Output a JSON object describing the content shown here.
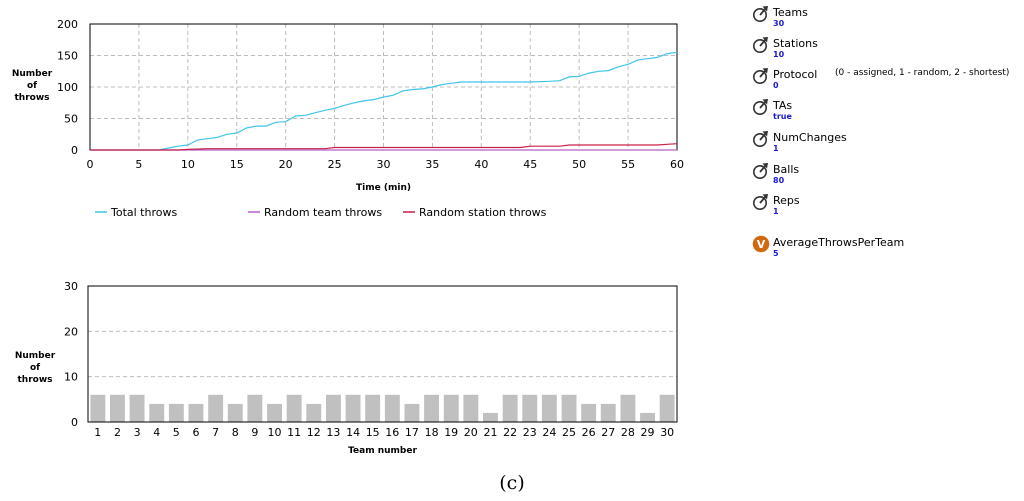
{
  "chart_data": [
    {
      "type": "line",
      "title": "",
      "xlabel": "Time (min)",
      "ylabel": [
        "Number",
        "of",
        "throws"
      ],
      "xlim": [
        0,
        60
      ],
      "ylim": [
        0,
        200
      ],
      "xticks": [
        0,
        5,
        10,
        15,
        20,
        25,
        30,
        35,
        40,
        45,
        50,
        55,
        60
      ],
      "yticks": [
        0,
        50,
        100,
        150,
        200
      ],
      "grid": true,
      "legend_position": "bottom",
      "series": [
        {
          "name": "Total throws",
          "color": "#40c4ea",
          "points": [
            [
              0,
              0
            ],
            [
              7,
              0
            ],
            [
              8,
              3
            ],
            [
              9,
              6
            ],
            [
              10,
              8
            ],
            [
              11,
              16
            ],
            [
              12,
              18
            ],
            [
              13,
              20
            ],
            [
              14,
              25
            ],
            [
              15,
              27
            ],
            [
              16,
              35
            ],
            [
              17,
              38
            ],
            [
              18,
              38
            ],
            [
              19,
              44
            ],
            [
              20,
              45
            ],
            [
              21,
              54
            ],
            [
              22,
              55
            ],
            [
              23,
              59
            ],
            [
              24,
              63
            ],
            [
              25,
              66
            ],
            [
              26,
              71
            ],
            [
              27,
              75
            ],
            [
              28,
              78
            ],
            [
              29,
              80
            ],
            [
              30,
              84
            ],
            [
              31,
              87
            ],
            [
              32,
              94
            ],
            [
              33,
              96
            ],
            [
              34,
              97
            ],
            [
              35,
              100
            ],
            [
              36,
              104
            ],
            [
              37,
              106
            ],
            [
              38,
              108
            ],
            [
              40,
              108
            ],
            [
              45,
              108
            ],
            [
              47,
              109
            ],
            [
              48,
              110
            ],
            [
              49,
              116
            ],
            [
              50,
              117
            ],
            [
              51,
              122
            ],
            [
              52,
              125
            ],
            [
              53,
              126
            ],
            [
              54,
              132
            ],
            [
              55,
              136
            ],
            [
              56,
              143
            ],
            [
              57,
              145
            ],
            [
              58,
              147
            ],
            [
              59,
              153
            ],
            [
              60,
              155
            ]
          ]
        },
        {
          "name": "Random team throws",
          "color": "#b560c8",
          "points": [
            [
              0,
              0
            ],
            [
              60,
              0
            ]
          ]
        },
        {
          "name": "Random station throws",
          "color": "#c8204c",
          "points": [
            [
              0,
              0
            ],
            [
              9,
              0
            ],
            [
              10,
              1
            ],
            [
              12,
              2
            ],
            [
              24,
              2
            ],
            [
              25,
              4
            ],
            [
              44,
              4
            ],
            [
              45,
              6
            ],
            [
              48,
              6
            ],
            [
              49,
              8
            ],
            [
              58,
              8
            ],
            [
              59,
              9
            ],
            [
              60,
              10
            ]
          ]
        }
      ]
    },
    {
      "type": "bar",
      "title": "",
      "xlabel": "Team number",
      "ylabel": [
        "Number",
        "of",
        "throws"
      ],
      "ylim": [
        0,
        30
      ],
      "yticks": [
        0,
        10,
        20,
        30
      ],
      "grid": true,
      "bar_color": "#c0c0c0",
      "categories": [
        "1",
        "2",
        "3",
        "4",
        "5",
        "6",
        "7",
        "8",
        "9",
        "10",
        "11",
        "12",
        "13",
        "14",
        "15",
        "16",
        "17",
        "18",
        "19",
        "20",
        "21",
        "22",
        "23",
        "24",
        "25",
        "26",
        "27",
        "28",
        "29",
        "30"
      ],
      "values": [
        6,
        6,
        6,
        4,
        4,
        4,
        6,
        4,
        6,
        4,
        6,
        4,
        6,
        6,
        6,
        6,
        4,
        6,
        6,
        6,
        2,
        6,
        6,
        6,
        6,
        4,
        4,
        6,
        2,
        6
      ]
    }
  ],
  "parameters": [
    {
      "name": "Teams",
      "value": "30",
      "icon": "parameter-icon"
    },
    {
      "name": "Stations",
      "value": "10",
      "icon": "parameter-icon"
    },
    {
      "name": "Protocol",
      "value": "0",
      "note": "(0 - assigned, 1 - random, 2 - shortest)",
      "icon": "parameter-icon"
    },
    {
      "name": "TAs",
      "value": "true",
      "icon": "parameter-icon"
    },
    {
      "name": "NumChanges",
      "value": "1",
      "icon": "parameter-icon"
    },
    {
      "name": "Balls",
      "value": "80",
      "icon": "parameter-icon"
    },
    {
      "name": "Reps",
      "value": "1",
      "icon": "parameter-icon"
    }
  ],
  "variable": {
    "name": "AverageThrowsPerTeam",
    "value": "5",
    "icon": "variable-icon",
    "icon_letter": "V",
    "icon_color": "#d06a10"
  },
  "caption": "(c)"
}
